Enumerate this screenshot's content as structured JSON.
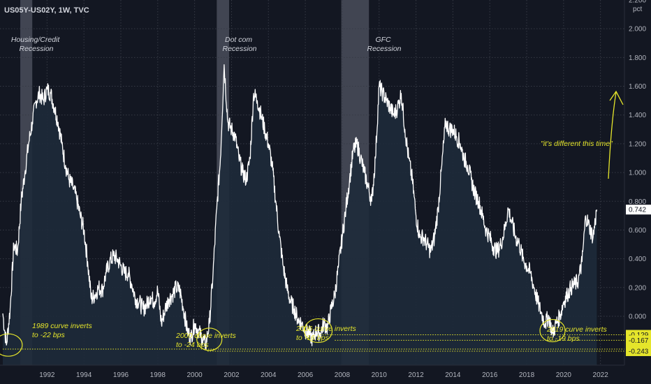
{
  "title": "US05Y-US02Y, 1W, TVC",
  "unit": "pct",
  "colors": {
    "background": "#131722",
    "grid": "#363a45",
    "line": "#ffffff",
    "area": "#1e2a3a",
    "recession": "#4a4e5a",
    "annotation": "#e5e52b",
    "last_label_bg": "#ffffff",
    "last_label_fg": "#131722"
  },
  "chart_data": {
    "type": "area",
    "title": "US05Y-US02Y, 1W, TVC",
    "xlabel": "",
    "ylabel": "pct",
    "xlim": [
      1989.45,
      2023.3
    ],
    "ylim": [
      -0.34,
      2.2
    ],
    "grid": true,
    "y_ticks": [
      "2.000",
      "1.800",
      "1.600",
      "1.400",
      "1.200",
      "1.000",
      "0.800",
      "0.600",
      "0.400",
      "0.200",
      "0.000"
    ],
    "x_ticks": [
      "1992",
      "1994",
      "1996",
      "1998",
      "2000",
      "2002",
      "2004",
      "2006",
      "2008",
      "2010",
      "2012",
      "2014",
      "2016",
      "2018",
      "2020",
      "2022"
    ],
    "series": [
      {
        "x": [
          1989.6,
          1989.8,
          1990.0,
          1990.2,
          1990.4,
          1990.6,
          1990.8,
          1991.0,
          1991.2,
          1991.4,
          1991.6,
          1991.8,
          1992.0,
          1992.2,
          1992.4,
          1992.6,
          1992.8,
          1993.0,
          1993.2,
          1993.4,
          1993.6,
          1993.8,
          1994.0,
          1994.2,
          1994.4,
          1994.6,
          1994.8,
          1995.0,
          1995.2,
          1995.4,
          1995.6,
          1995.8,
          1996.0,
          1996.2,
          1996.4,
          1996.6,
          1996.8,
          1997.0,
          1997.2,
          1997.4,
          1997.6,
          1997.8,
          1998.0,
          1998.2,
          1998.4,
          1998.6,
          1998.8,
          1999.0,
          1999.2,
          1999.4,
          1999.6,
          1999.8,
          2000.0,
          2000.2,
          2000.4,
          2000.6,
          2000.8,
          2001.0,
          2001.2,
          2001.4,
          2001.6,
          2001.8,
          2002.0,
          2002.2,
          2002.4,
          2002.6,
          2002.8,
          2003.0,
          2003.2,
          2003.4,
          2003.6,
          2003.8,
          2004.0,
          2004.2,
          2004.4,
          2004.6,
          2004.8,
          2005.0,
          2005.2,
          2005.4,
          2005.6,
          2005.8,
          2006.0,
          2006.2,
          2006.4,
          2006.6,
          2006.8,
          2007.0,
          2007.2,
          2007.4,
          2007.6,
          2007.8,
          2008.0,
          2008.2,
          2008.4,
          2008.6,
          2008.8,
          2009.0,
          2009.2,
          2009.4,
          2009.6,
          2009.8,
          2010.0,
          2010.2,
          2010.4,
          2010.6,
          2010.8,
          2011.0,
          2011.2,
          2011.4,
          2011.6,
          2011.8,
          2012.0,
          2012.2,
          2012.4,
          2012.6,
          2012.8,
          2013.0,
          2013.2,
          2013.4,
          2013.6,
          2013.8,
          2014.0,
          2014.2,
          2014.4,
          2014.6,
          2014.8,
          2015.0,
          2015.2,
          2015.4,
          2015.6,
          2015.8,
          2016.0,
          2016.2,
          2016.4,
          2016.6,
          2016.8,
          2017.0,
          2017.2,
          2017.4,
          2017.6,
          2017.8,
          2018.0,
          2018.2,
          2018.4,
          2018.6,
          2018.8,
          2019.0,
          2019.2,
          2019.4,
          2019.6,
          2019.8,
          2020.0,
          2020.2,
          2020.4,
          2020.6,
          2020.8,
          2021.0,
          2021.2,
          2021.4,
          2021.6,
          2021.8
        ],
        "values": [
          0.02,
          -0.2,
          0.05,
          0.5,
          0.45,
          0.8,
          1.0,
          1.2,
          1.35,
          1.5,
          1.55,
          1.5,
          1.58,
          1.55,
          1.45,
          1.35,
          1.2,
          1.05,
          0.95,
          0.9,
          0.82,
          0.7,
          0.6,
          0.38,
          0.12,
          0.15,
          0.2,
          0.18,
          0.3,
          0.38,
          0.42,
          0.4,
          0.35,
          0.3,
          0.3,
          0.22,
          0.12,
          0.1,
          0.05,
          0.08,
          0.14,
          0.1,
          0.18,
          -0.05,
          0.05,
          0.12,
          0.15,
          0.2,
          0.18,
          0.05,
          -0.1,
          -0.15,
          -0.05,
          -0.1,
          -0.15,
          -0.2,
          -0.05,
          0.3,
          0.75,
          1.1,
          1.75,
          1.35,
          1.3,
          1.25,
          1.1,
          1.0,
          0.95,
          1.1,
          1.55,
          1.5,
          1.4,
          1.3,
          1.2,
          1.05,
          0.8,
          0.55,
          0.35,
          0.2,
          0.1,
          0.05,
          -0.02,
          -0.05,
          -0.1,
          -0.12,
          -0.16,
          -0.1,
          -0.12,
          -0.05,
          -0.08,
          0.05,
          0.15,
          0.35,
          0.55,
          0.75,
          0.95,
          1.15,
          1.2,
          1.1,
          1.0,
          0.9,
          0.8,
          1.1,
          1.6,
          1.55,
          1.5,
          1.45,
          1.4,
          1.45,
          1.55,
          1.3,
          1.1,
          0.95,
          0.7,
          0.55,
          0.55,
          0.5,
          0.45,
          0.55,
          0.75,
          1.05,
          1.35,
          1.3,
          1.3,
          1.25,
          1.2,
          1.1,
          1.05,
          0.95,
          0.85,
          0.8,
          0.7,
          0.6,
          0.55,
          0.48,
          0.45,
          0.5,
          0.6,
          0.75,
          0.65,
          0.55,
          0.5,
          0.4,
          0.35,
          0.3,
          0.2,
          0.1,
          0.02,
          -0.05,
          0.0,
          -0.12,
          -0.05,
          0.0,
          0.1,
          0.15,
          0.2,
          0.22,
          0.25,
          0.38,
          0.7,
          0.62,
          0.55,
          0.742
        ]
      }
    ],
    "recessions": [
      {
        "start": 1990.55,
        "end": 1991.2,
        "label": "Housing/Credit\nRecession"
      },
      {
        "start": 2001.2,
        "end": 2001.87,
        "label": "Dot com\nRecession"
      },
      {
        "start": 2007.95,
        "end": 2009.45,
        "label": "GFC\nRecession"
      }
    ],
    "horizontal_lines": [
      {
        "value": -0.129,
        "label": "-0.129",
        "x_start": 2006.8
      },
      {
        "value": -0.167,
        "label": "-0.167",
        "x_start": 2007.6
      },
      {
        "value": -0.228,
        "label": "-0.228",
        "x_start": 1989.6
      },
      {
        "value": -0.243,
        "label": "-0.243",
        "x_start": 2000.7
      }
    ],
    "last_value": {
      "value": 0.742,
      "label": "0.742"
    },
    "top_partial_tick": "2.200"
  },
  "annotations": {
    "inv_1989": [
      "1989 curve inverts",
      "to -22 bps"
    ],
    "inv_2000": [
      "2000 curve inverts",
      "to -24 bps"
    ],
    "inv_2006": [
      "2006 curve inverts",
      "to -16 bps"
    ],
    "inv_2019": [
      "2019 curve inverts",
      "to -19 bps"
    ],
    "different": "\"it's different this time\""
  }
}
